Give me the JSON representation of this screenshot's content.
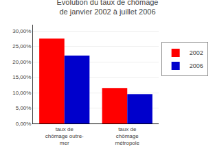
{
  "chart_data": {
    "type": "bar",
    "title": "Evolution du taux de chômage\nde janvier 2002 à juillet 2006",
    "categories": [
      "taux de\nchômage outre-\nmer",
      "taux de\nchômage\nmétropole"
    ],
    "series": [
      {
        "name": "2002",
        "color": "#FF0000",
        "values": [
          0.275,
          0.115
        ]
      },
      {
        "name": "2006",
        "color": "#0000CC",
        "values": [
          0.22,
          0.095
        ]
      }
    ],
    "ylim": [
      0,
      0.32
    ],
    "yticks": [
      {
        "value": 0.0,
        "label": "0,00%"
      },
      {
        "value": 0.05,
        "label": "5,00%"
      },
      {
        "value": 0.1,
        "label": "10,00%"
      },
      {
        "value": 0.15,
        "label": "15,00%"
      },
      {
        "value": 0.2,
        "label": "20,00%"
      },
      {
        "value": 0.25,
        "label": "25,00%"
      },
      {
        "value": 0.3,
        "label": "30,00%"
      }
    ],
    "grid": true,
    "legend": "right"
  }
}
